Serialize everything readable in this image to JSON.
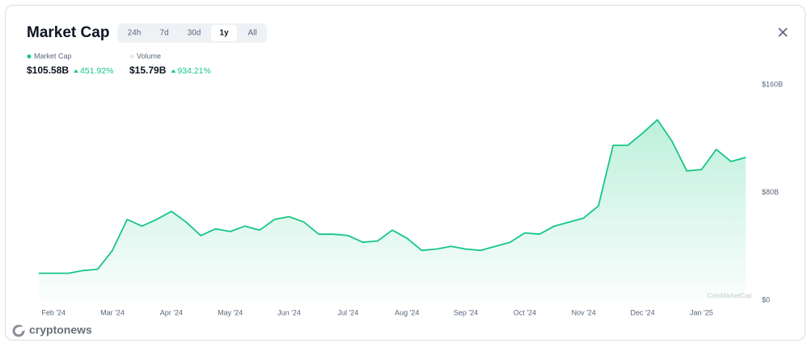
{
  "header": {
    "title": "Market Cap",
    "tabs": [
      "24h",
      "7d",
      "30d",
      "1y",
      "All"
    ],
    "active_tab": 3
  },
  "summary": [
    {
      "name": "Market Cap",
      "color": "#16c784",
      "value": "$105.58B",
      "change": "451.92%"
    },
    {
      "name": "Volume",
      "color": "#e6e8ec",
      "value": "$15.79B",
      "change": "934.21%"
    }
  ],
  "watermark": "CoinMarketCap",
  "brand": "cryptonews",
  "chart_data": {
    "type": "area",
    "categories": [
      null,
      "Feb '24",
      null,
      null,
      null,
      "Mar '24",
      null,
      null,
      null,
      "Apr '24",
      null,
      null,
      null,
      "May '24",
      null,
      null,
      null,
      "Jun '24",
      null,
      null,
      null,
      "Jul '24",
      null,
      null,
      null,
      "Aug '24",
      null,
      null,
      null,
      "Sep '24",
      null,
      null,
      null,
      "Oct '24",
      null,
      null,
      null,
      "Nov '24",
      null,
      null,
      null,
      "Dec '24",
      null,
      null,
      null,
      "Jan '25",
      null,
      null,
      null
    ],
    "series": [
      {
        "name": "Market Cap",
        "color": "#16c784",
        "values": [
          20,
          20,
          20,
          22,
          23,
          37,
          60,
          55,
          60,
          66,
          58,
          48,
          53,
          51,
          55,
          52,
          60,
          62,
          58,
          49,
          49,
          48,
          43,
          44,
          52,
          46,
          37,
          38,
          40,
          38,
          37,
          40,
          43,
          50,
          49,
          55,
          58,
          61,
          70,
          115,
          115,
          124,
          134,
          118,
          96,
          97,
          112,
          103,
          106
        ]
      }
    ],
    "ylim": [
      0,
      160
    ],
    "yticks": [
      {
        "value": 0,
        "label": "$0"
      },
      {
        "value": 80,
        "label": "$80B"
      },
      {
        "value": 160,
        "label": "$160B"
      }
    ],
    "grid": false
  }
}
